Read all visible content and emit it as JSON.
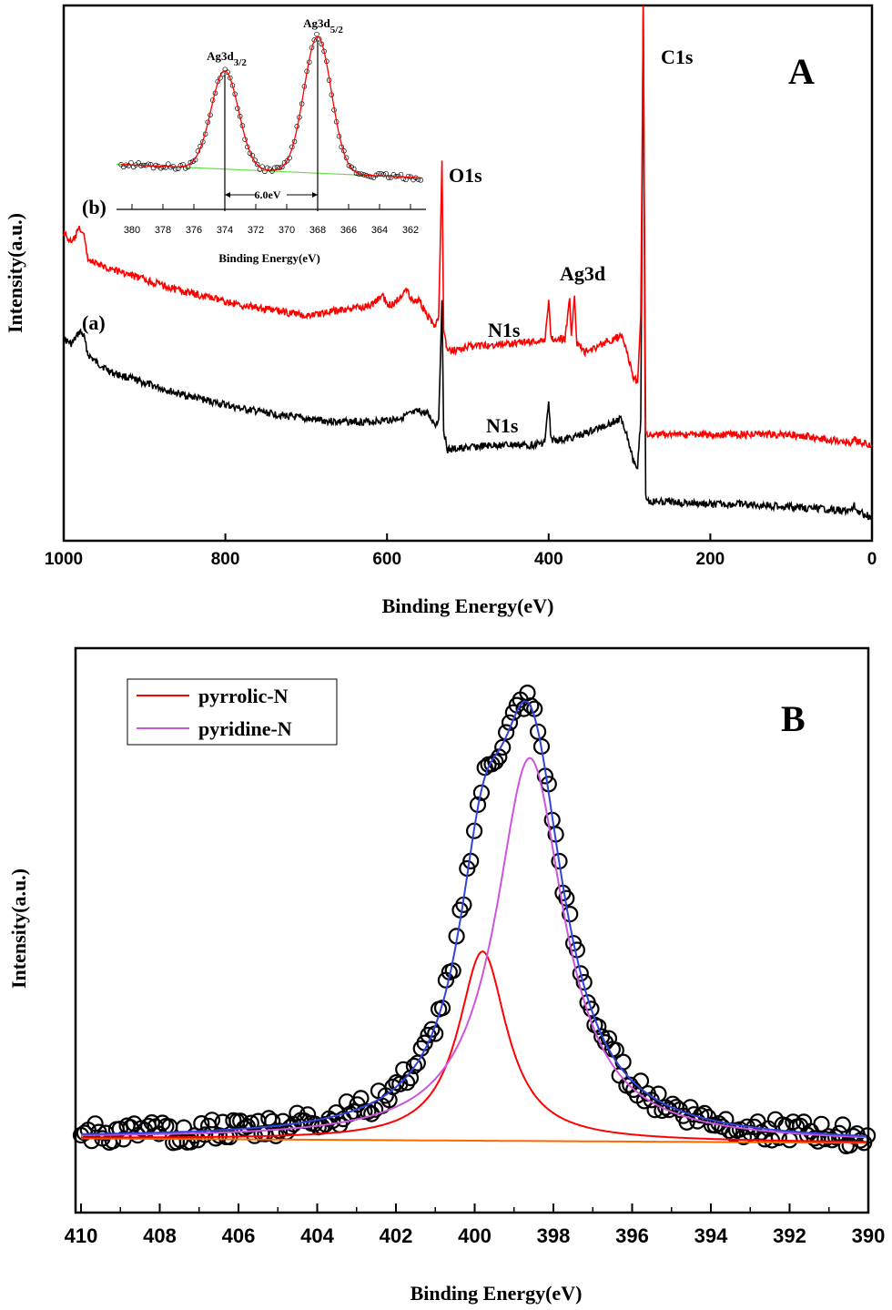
{
  "chart_data": [
    {
      "type": "line",
      "panel": "A",
      "xlabel": "Binding Energy(eV)",
      "ylabel": "Intensity(a.u.)",
      "xlim": [
        1000,
        0
      ],
      "xticks": [
        1000,
        800,
        600,
        400,
        200,
        0
      ],
      "series": [
        {
          "name": "(a)",
          "color": "#000000",
          "points": [
            [
              1000,
              0.355
            ],
            [
              990,
              0.345
            ],
            [
              980,
              0.37
            ],
            [
              975,
              0.36
            ],
            [
              970,
              0.325
            ],
            [
              960,
              0.31
            ],
            [
              940,
              0.29
            ],
            [
              900,
              0.27
            ],
            [
              860,
              0.25
            ],
            [
              820,
              0.235
            ],
            [
              780,
              0.22
            ],
            [
              740,
              0.21
            ],
            [
              700,
              0.2
            ],
            [
              660,
              0.195
            ],
            [
              620,
              0.195
            ],
            [
              590,
              0.2
            ],
            [
              560,
              0.215
            ],
            [
              550,
              0.21
            ],
            [
              540,
              0.19
            ],
            [
              536,
              0.2
            ],
            [
              532,
              0.43
            ],
            [
              530,
              0.18
            ],
            [
              525,
              0.14
            ],
            [
              500,
              0.145
            ],
            [
              460,
              0.15
            ],
            [
              420,
              0.15
            ],
            [
              405,
              0.155
            ],
            [
              400,
              0.23
            ],
            [
              397,
              0.16
            ],
            [
              380,
              0.16
            ],
            [
              350,
              0.175
            ],
            [
              320,
              0.195
            ],
            [
              310,
              0.2
            ],
            [
              305,
              0.18
            ],
            [
              295,
              0.12
            ],
            [
              290,
              0.11
            ],
            [
              286,
              0.2
            ],
            [
              283,
              1.0
            ],
            [
              280,
              0.05
            ],
            [
              275,
              0.04
            ],
            [
              250,
              0.04
            ],
            [
              200,
              0.035
            ],
            [
              150,
              0.035
            ],
            [
              100,
              0.03
            ],
            [
              50,
              0.025
            ],
            [
              25,
              0.022
            ],
            [
              22,
              0.035
            ],
            [
              18,
              0.022
            ],
            [
              0,
              0.01
            ]
          ]
        },
        {
          "name": "(b)",
          "color": "#ff0000",
          "points": [
            [
              1000,
              0.56
            ],
            [
              990,
              0.54
            ],
            [
              980,
              0.57
            ],
            [
              975,
              0.555
            ],
            [
              970,
              0.51
            ],
            [
              960,
              0.5
            ],
            [
              940,
              0.49
            ],
            [
              900,
              0.47
            ],
            [
              860,
              0.45
            ],
            [
              820,
              0.435
            ],
            [
              780,
              0.42
            ],
            [
              740,
              0.41
            ],
            [
              700,
              0.4
            ],
            [
              660,
              0.41
            ],
            [
              620,
              0.42
            ],
            [
              605,
              0.44
            ],
            [
              600,
              0.42
            ],
            [
              590,
              0.425
            ],
            [
              575,
              0.455
            ],
            [
              570,
              0.43
            ],
            [
              560,
              0.43
            ],
            [
              550,
              0.4
            ],
            [
              540,
              0.38
            ],
            [
              536,
              0.4
            ],
            [
              532,
              0.7
            ],
            [
              530,
              0.37
            ],
            [
              525,
              0.33
            ],
            [
              500,
              0.34
            ],
            [
              460,
              0.345
            ],
            [
              420,
              0.35
            ],
            [
              405,
              0.35
            ],
            [
              400,
              0.43
            ],
            [
              397,
              0.355
            ],
            [
              380,
              0.355
            ],
            [
              374,
              0.43
            ],
            [
              372,
              0.365
            ],
            [
              368,
              0.44
            ],
            [
              365,
              0.345
            ],
            [
              355,
              0.33
            ],
            [
              340,
              0.34
            ],
            [
              320,
              0.355
            ],
            [
              310,
              0.36
            ],
            [
              305,
              0.34
            ],
            [
              295,
              0.28
            ],
            [
              290,
              0.27
            ],
            [
              286,
              0.4
            ],
            [
              283,
              1.0
            ],
            [
              280,
              0.175
            ],
            [
              275,
              0.17
            ],
            [
              250,
              0.17
            ],
            [
              200,
              0.17
            ],
            [
              150,
              0.17
            ],
            [
              100,
              0.17
            ],
            [
              50,
              0.16
            ],
            [
              25,
              0.155
            ],
            [
              22,
              0.165
            ],
            [
              18,
              0.155
            ],
            [
              0,
              0.15
            ]
          ]
        }
      ],
      "annotations": [
        "(a)",
        "(b)",
        "O1s",
        "C1s",
        "N1s",
        "N1s",
        "Ag3d",
        "A"
      ]
    },
    {
      "type": "line",
      "panel": "A-inset",
      "xlabel": "Binding Energy(eV)",
      "xlim": [
        381,
        361
      ],
      "xticks": [
        380,
        378,
        376,
        374,
        372,
        370,
        368,
        366,
        364,
        362
      ],
      "peaks": [
        {
          "label": "Ag3d3/2",
          "x": 374.0,
          "height": 0.72
        },
        {
          "label": "Ag3d5/2",
          "x": 368.0,
          "height": 1.0
        }
      ],
      "splitting_label": "6.0eV",
      "background": {
        "start": 0.05,
        "end": -0.05
      }
    },
    {
      "type": "line",
      "panel": "B",
      "xlabel": "Binding Energy(eV)",
      "ylabel": "Intensity(a.u.)",
      "xlim": [
        410,
        390
      ],
      "xticks": [
        410,
        408,
        406,
        404,
        402,
        400,
        398,
        396,
        394,
        392,
        390
      ],
      "series": [
        {
          "name": "pyrrolic-N",
          "color": "#ff0000",
          "center": 399.8,
          "height": 0.42,
          "width": 0.75
        },
        {
          "name": "pyridine-N",
          "color": "#cc55dd",
          "center": 398.6,
          "height": 0.85,
          "width": 1.05
        },
        {
          "name": "",
          "color": "#3344dd",
          "kind": "envelope"
        },
        {
          "name": "",
          "color": "#ff6600",
          "kind": "background"
        }
      ],
      "background": {
        "start": 0.005,
        "end": -0.005
      },
      "legend": [
        {
          "label": "pyrrolic-N",
          "color": "#ff0000"
        },
        {
          "label": "pyridine-N",
          "color": "#cc55dd"
        }
      ],
      "legend_position": "top-left",
      "panel_label": "B"
    }
  ]
}
